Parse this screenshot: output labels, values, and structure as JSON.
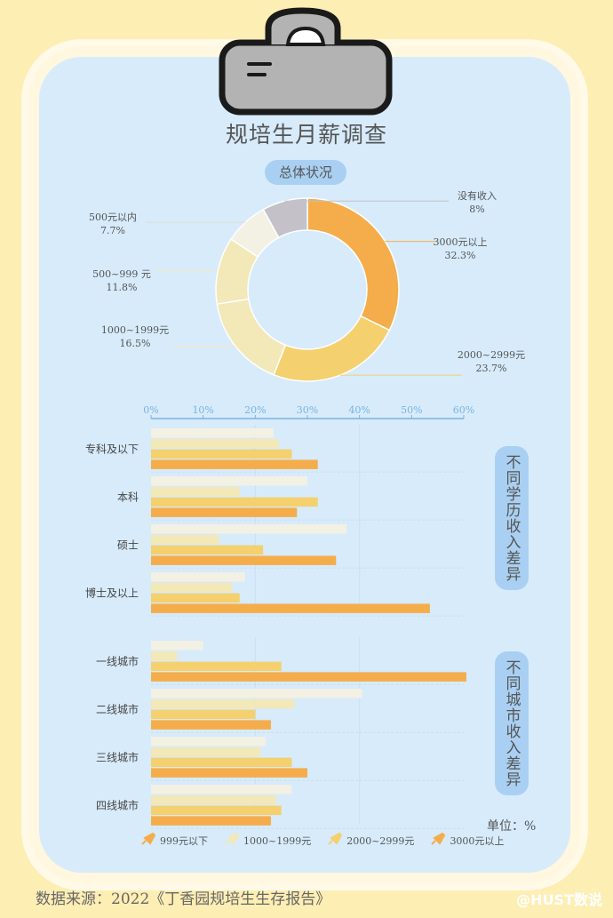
{
  "title": "规培生月薪调查",
  "section_overall": "总体状况",
  "section_education": "不同学历收入差异",
  "section_city": "不同城市收入差异",
  "unit_label": "单位：%",
  "source": "数据来源：2022《丁香园规培生生存报告》",
  "brand": "@HUST数说",
  "colors": {
    "s1": "#f3f0e4",
    "s2": "#f2e8b8",
    "s3": "#f4d06e",
    "s4": "#f4ad4a",
    "none": "#c4c2c8",
    "axis": "#7ab3e0",
    "board": "#d7ebfb"
  },
  "chart_data": [
    {
      "type": "pie",
      "title": "总体状况",
      "slices": [
        {
          "label": "3000元以上",
          "value": 32.3,
          "value_label": "32.3%"
        },
        {
          "label": "2000~2999元",
          "value": 23.7,
          "value_label": "23.7%"
        },
        {
          "label": "1000~1999元",
          "value": 16.5,
          "value_label": "16.5%"
        },
        {
          "label": "500~999 元",
          "value": 11.8,
          "value_label": "11.8%"
        },
        {
          "label": "500元以内",
          "value": 7.7,
          "value_label": "7.7%"
        },
        {
          "label": "没有收入",
          "value": 8,
          "value_label": "8%"
        }
      ]
    },
    {
      "type": "bar",
      "orientation": "horizontal",
      "title": "不同学历收入差异",
      "categories": [
        "专科及以下",
        "本科",
        "硕士",
        "博士及以上"
      ],
      "xlim": [
        0,
        60
      ],
      "xticks": [
        "0%",
        "10%",
        "20%",
        "30%",
        "40%",
        "50%",
        "60%"
      ],
      "series": [
        {
          "name": "999元以下",
          "values": [
            23.5,
            30,
            37.5,
            18
          ]
        },
        {
          "name": "1000~1999元",
          "values": [
            24.5,
            17,
            13,
            15.5
          ]
        },
        {
          "name": "2000~2999元",
          "values": [
            27,
            32,
            21.5,
            17
          ]
        },
        {
          "name": "3000元以上",
          "values": [
            32,
            28,
            35.5,
            53.5
          ]
        }
      ]
    },
    {
      "type": "bar",
      "orientation": "horizontal",
      "title": "不同城市收入差异",
      "categories": [
        "一线城市",
        "二线城市",
        "三线城市",
        "四线城市"
      ],
      "xlim": [
        0,
        60
      ],
      "series": [
        {
          "name": "999元以下",
          "values": [
            10,
            40.5,
            22,
            27
          ]
        },
        {
          "name": "1000~1999元",
          "values": [
            5,
            27.5,
            21,
            24
          ]
        },
        {
          "name": "2000~2999元",
          "values": [
            25,
            20,
            27,
            25
          ]
        },
        {
          "name": "3000元以上",
          "values": [
            60.5,
            23,
            30,
            23
          ]
        }
      ]
    }
  ]
}
